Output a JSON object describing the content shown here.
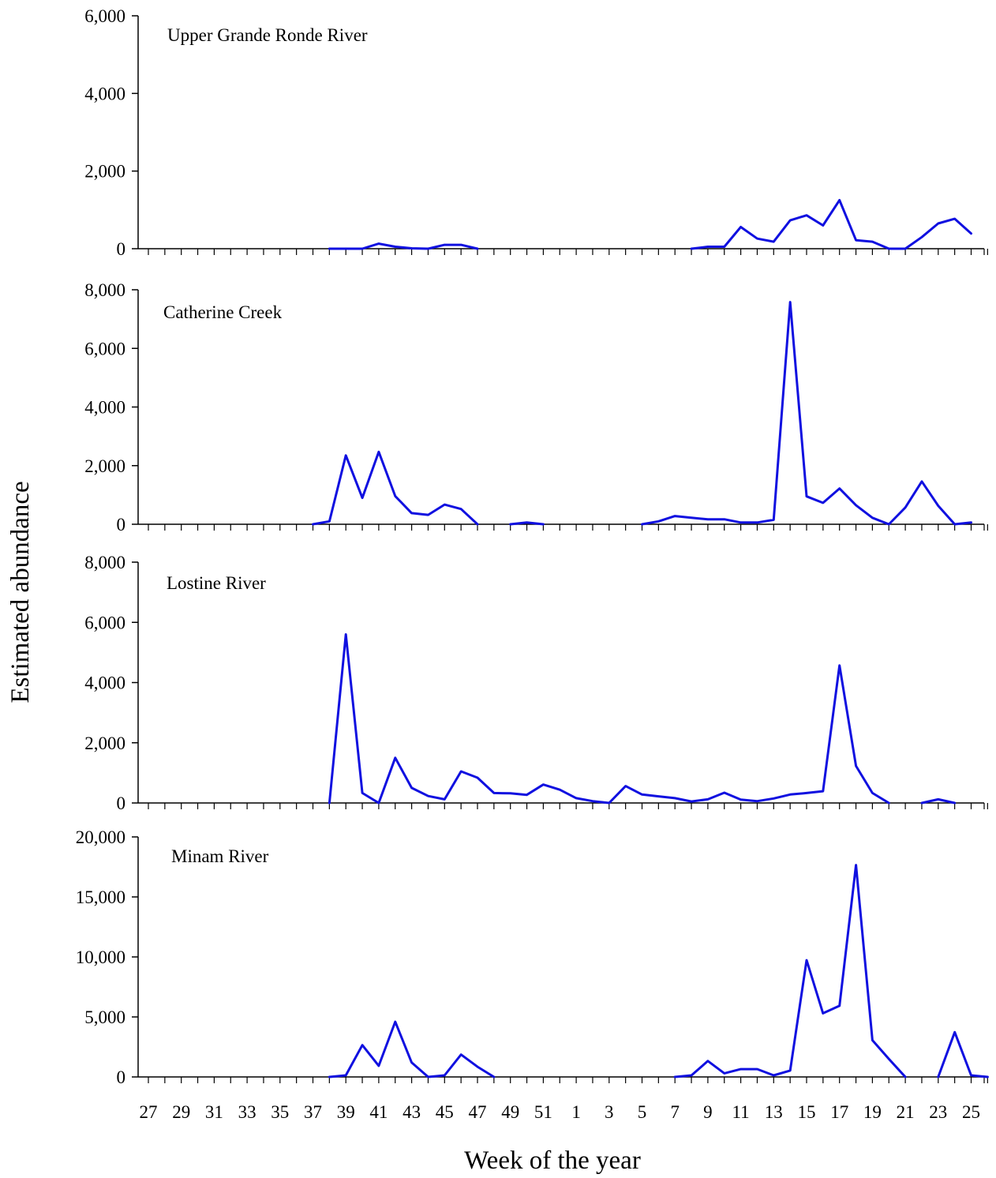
{
  "chart_data": {
    "type": "line",
    "xlabel": "Week of the year",
    "ylabel": "Estimated abundance",
    "x_weeks": [
      27,
      28,
      29,
      30,
      31,
      32,
      33,
      34,
      35,
      36,
      37,
      38,
      39,
      40,
      41,
      42,
      43,
      44,
      45,
      46,
      47,
      48,
      49,
      50,
      51,
      52,
      1,
      2,
      3,
      4,
      5,
      6,
      7,
      8,
      9,
      10,
      11,
      12,
      13,
      14,
      15,
      16,
      17,
      18,
      19,
      20,
      21,
      22,
      23,
      24,
      25,
      26
    ],
    "x_tick_labels": [
      "27",
      "29",
      "31",
      "33",
      "35",
      "37",
      "39",
      "41",
      "43",
      "45",
      "47",
      "49",
      "51",
      "1",
      "3",
      "5",
      "7",
      "9",
      "11",
      "13",
      "15",
      "17",
      "19",
      "21",
      "23",
      "25"
    ],
    "line_color": "#1010e0",
    "panels": [
      {
        "title": "Upper Grande Ronde River",
        "ylim": [
          0,
          6000
        ],
        "yticks": [
          0,
          2000,
          4000,
          6000
        ],
        "ytick_labels": [
          "0",
          "2,000",
          "4,000",
          "6,000"
        ],
        "series": [
          [
            [
              38,
              0
            ],
            [
              39,
              0
            ],
            [
              40,
              0
            ],
            [
              41,
              130
            ],
            [
              42,
              50
            ],
            [
              43,
              10
            ],
            [
              44,
              0
            ],
            [
              45,
              100
            ],
            [
              46,
              100
            ],
            [
              47,
              0
            ]
          ],
          [
            [
              8,
              0
            ],
            [
              9,
              50
            ],
            [
              10,
              50
            ],
            [
              11,
              560
            ],
            [
              12,
              260
            ],
            [
              13,
              180
            ],
            [
              14,
              730
            ],
            [
              15,
              860
            ],
            [
              16,
              600
            ],
            [
              17,
              1250
            ],
            [
              18,
              220
            ],
            [
              19,
              180
            ],
            [
              20,
              0
            ],
            [
              21,
              0
            ],
            [
              22,
              300
            ],
            [
              23,
              650
            ],
            [
              24,
              770
            ],
            [
              25,
              390
            ]
          ]
        ]
      },
      {
        "title": "Catherine Creek",
        "ylim": [
          0,
          8000
        ],
        "yticks": [
          0,
          2000,
          4000,
          6000,
          8000
        ],
        "ytick_labels": [
          "0",
          "2,000",
          "4,000",
          "6,000",
          "8,000"
        ],
        "series": [
          [
            [
              37,
              0
            ],
            [
              38,
              100
            ],
            [
              39,
              2350
            ],
            [
              40,
              900
            ],
            [
              41,
              2470
            ],
            [
              42,
              960
            ],
            [
              43,
              380
            ],
            [
              44,
              320
            ],
            [
              45,
              670
            ],
            [
              46,
              520
            ],
            [
              47,
              0
            ]
          ],
          [
            [
              49,
              0
            ],
            [
              50,
              60
            ],
            [
              51,
              0
            ]
          ],
          [
            [
              5,
              0
            ],
            [
              6,
              100
            ],
            [
              7,
              280
            ],
            [
              8,
              220
            ],
            [
              9,
              170
            ],
            [
              10,
              170
            ],
            [
              11,
              60
            ],
            [
              12,
              60
            ],
            [
              13,
              150
            ],
            [
              14,
              7580
            ],
            [
              15,
              950
            ],
            [
              16,
              730
            ],
            [
              17,
              1220
            ],
            [
              18,
              650
            ],
            [
              19,
              220
            ],
            [
              20,
              0
            ],
            [
              21,
              570
            ],
            [
              22,
              1460
            ],
            [
              23,
              630
            ],
            [
              24,
              0
            ],
            [
              25,
              60
            ]
          ]
        ]
      },
      {
        "title": "Lostine River",
        "ylim": [
          0,
          8000
        ],
        "yticks": [
          0,
          2000,
          4000,
          6000,
          8000
        ],
        "ytick_labels": [
          "0",
          "2,000",
          "4,000",
          "6,000",
          "8,000"
        ],
        "series": [
          [
            [
              38,
              0
            ],
            [
              39,
              5600
            ],
            [
              40,
              330
            ],
            [
              41,
              0
            ],
            [
              42,
              1500
            ],
            [
              43,
              500
            ],
            [
              44,
              230
            ],
            [
              45,
              120
            ],
            [
              46,
              1050
            ],
            [
              47,
              840
            ],
            [
              48,
              330
            ],
            [
              49,
              320
            ],
            [
              50,
              270
            ],
            [
              51,
              610
            ],
            [
              52,
              440
            ],
            [
              1,
              160
            ],
            [
              2,
              60
            ],
            [
              3,
              0
            ],
            [
              4,
              560
            ],
            [
              5,
              280
            ],
            [
              6,
              220
            ],
            [
              7,
              160
            ],
            [
              8,
              50
            ],
            [
              9,
              120
            ],
            [
              10,
              340
            ],
            [
              11,
              110
            ],
            [
              12,
              60
            ],
            [
              13,
              150
            ],
            [
              14,
              280
            ],
            [
              15,
              330
            ],
            [
              16,
              390
            ],
            [
              17,
              4570
            ],
            [
              18,
              1230
            ],
            [
              19,
              330
            ],
            [
              20,
              0
            ]
          ],
          [
            [
              22,
              0
            ],
            [
              23,
              120
            ],
            [
              24,
              0
            ]
          ]
        ]
      },
      {
        "title": "Minam River",
        "ylim": [
          0,
          20000
        ],
        "yticks": [
          0,
          5000,
          10000,
          15000,
          20000
        ],
        "ytick_labels": [
          "0",
          "5,000",
          "10,000",
          "15,000",
          "20,000"
        ],
        "series": [
          [
            [
              38,
              0
            ],
            [
              39,
              130
            ],
            [
              40,
              2650
            ],
            [
              41,
              930
            ],
            [
              42,
              4600
            ],
            [
              43,
              1200
            ],
            [
              44,
              0
            ],
            [
              45,
              130
            ],
            [
              46,
              1860
            ],
            [
              47,
              850
            ],
            [
              48,
              0
            ]
          ],
          [
            [
              7,
              0
            ],
            [
              8,
              130
            ],
            [
              9,
              1330
            ],
            [
              10,
              300
            ],
            [
              11,
              650
            ],
            [
              12,
              650
            ],
            [
              13,
              130
            ],
            [
              14,
              530
            ],
            [
              15,
              9730
            ],
            [
              16,
              5300
            ],
            [
              17,
              5930
            ],
            [
              18,
              17660
            ],
            [
              19,
              3060
            ],
            [
              20,
              1500
            ],
            [
              21,
              0
            ]
          ],
          [
            [
              23,
              0
            ],
            [
              24,
              3730
            ],
            [
              25,
              130
            ],
            [
              26,
              0
            ]
          ]
        ]
      }
    ]
  }
}
